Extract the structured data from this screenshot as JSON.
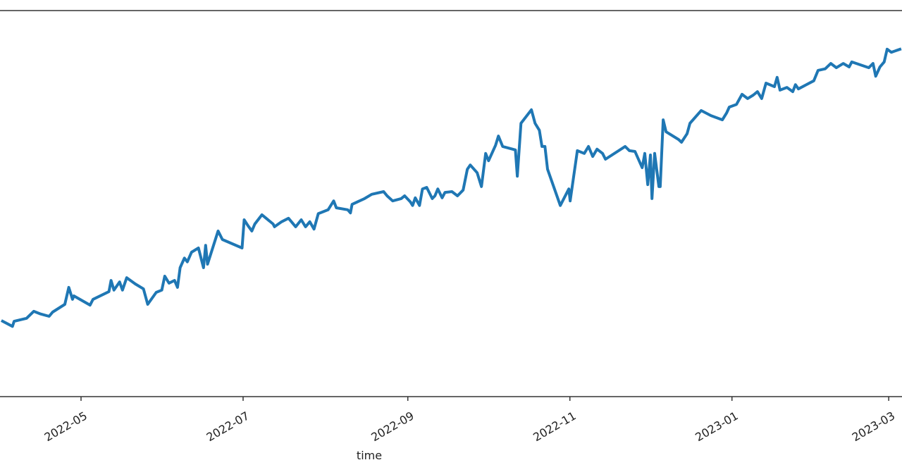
{
  "chart_data": {
    "type": "line",
    "xlabel": "time",
    "color": "#1f77b4",
    "xlim": [
      -0.5,
      339
    ],
    "ylim": [
      0,
      100
    ],
    "xticks": [
      {
        "value": 30,
        "label": "2022-05"
      },
      {
        "value": 91,
        "label": "2022-07"
      },
      {
        "value": 153,
        "label": "2022-09"
      },
      {
        "value": 214,
        "label": "2022-11"
      },
      {
        "value": 275,
        "label": "2023-01"
      },
      {
        "value": 334,
        "label": "2023-03"
      }
    ],
    "x": [
      0,
      4.2,
      4.8,
      9.5,
      12.2,
      14.8,
      18.0,
      19.3,
      23.9,
      25.4,
      26.8,
      27.3,
      33.4,
      34.5,
      40.5,
      41.3,
      42.4,
      44.5,
      45.6,
      47.2,
      50.4,
      53.5,
      55.1,
      58.3,
      60.4,
      61.5,
      63.1,
      65.2,
      66.3,
      67.3,
      68.9,
      70.0,
      71.6,
      74.2,
      76.1,
      76.9,
      77.6,
      81.6,
      83.2,
      90.6,
      91.4,
      92.8,
      94.3,
      95.4,
      98.1,
      102.3,
      102.8,
      105.5,
      108.1,
      110.8,
      112.9,
      114.5,
      116.1,
      117.7,
      119.3,
      123.0,
      125.1,
      126.1,
      130.4,
      131.4,
      132.0,
      136.7,
      139.4,
      143.9,
      145.2,
      147.3,
      150.5,
      151.8,
      154.0,
      154.8,
      155.8,
      157.4,
      158.5,
      160.1,
      162.2,
      163.2,
      164.3,
      165.9,
      167.0,
      169.6,
      171.7,
      173.8,
      175.4,
      176.5,
      179.1,
      180.7,
      182.3,
      183.4,
      186.0,
      187.1,
      188.7,
      193.5,
      194.2,
      195.6,
      199.5,
      200.9,
      202.5,
      203.5,
      204.6,
      205.6,
      210.4,
      213.6,
      214.1,
      216.8,
      219.4,
      221.0,
      222.6,
      224.2,
      226.3,
      227.4,
      234.8,
      236.4,
      238.5,
      241.2,
      242.2,
      243.3,
      244.3,
      244.9,
      245.9,
      247.5,
      248.0,
      249.1,
      250.2,
      254.9,
      256.0,
      258.1,
      259.2,
      263.4,
      267.1,
      271.4,
      273.0,
      274.0,
      276.7,
      278.8,
      280.9,
      283.0,
      284.6,
      286.2,
      287.8,
      291.0,
      292.0,
      293.1,
      295.7,
      297.9,
      298.9,
      300.0,
      305.8,
      307.4,
      310.1,
      312.2,
      314.3,
      316.9,
      319.1,
      320.1,
      326.5,
      328.1,
      329.1,
      330.7,
      332.3,
      333.4,
      335.0,
      338.7
    ],
    "values": [
      19.7,
      18.2,
      19.5,
      20.3,
      22.1,
      21.4,
      20.8,
      21.9,
      23.9,
      28.3,
      25.2,
      26.1,
      23.7,
      25.2,
      27.2,
      30.1,
      27.6,
      29.7,
      27.6,
      30.8,
      29.2,
      27.9,
      23.9,
      27.0,
      27.6,
      31.2,
      29.4,
      30.1,
      28.3,
      33.4,
      35.9,
      34.9,
      37.4,
      38.5,
      33.4,
      39.2,
      34.3,
      42.9,
      40.7,
      38.5,
      45.8,
      44.3,
      42.9,
      44.7,
      47.1,
      44.7,
      44.0,
      45.3,
      46.2,
      44.0,
      45.8,
      44.0,
      45.3,
      43.4,
      47.4,
      48.4,
      50.7,
      48.9,
      48.4,
      47.6,
      49.8,
      51.3,
      52.4,
      53.1,
      52.0,
      50.7,
      51.3,
      52.0,
      50.4,
      49.5,
      51.5,
      49.5,
      53.8,
      54.2,
      51.3,
      52.0,
      53.8,
      51.5,
      52.9,
      53.1,
      52.0,
      53.5,
      58.9,
      60.0,
      58.0,
      54.4,
      63.0,
      61.1,
      65.1,
      67.5,
      64.8,
      63.9,
      57.1,
      70.8,
      74.3,
      70.8,
      69.0,
      64.8,
      64.8,
      58.9,
      49.5,
      53.8,
      50.7,
      63.7,
      63.0,
      64.8,
      62.2,
      64.1,
      63.0,
      61.5,
      64.8,
      63.7,
      63.5,
      59.3,
      63.0,
      54.9,
      62.6,
      51.3,
      63.0,
      54.4,
      54.4,
      71.7,
      68.6,
      66.6,
      65.9,
      68.1,
      70.8,
      74.1,
      72.8,
      71.7,
      73.5,
      75.0,
      75.7,
      78.3,
      77.2,
      78.1,
      79.0,
      77.2,
      81.2,
      80.3,
      82.7,
      79.4,
      80.1,
      79.0,
      80.8,
      79.7,
      81.8,
      84.5,
      84.9,
      86.3,
      85.2,
      86.3,
      85.4,
      86.7,
      85.2,
      86.3,
      83.0,
      85.4,
      86.7,
      90.0,
      89.2,
      90.1
    ]
  }
}
